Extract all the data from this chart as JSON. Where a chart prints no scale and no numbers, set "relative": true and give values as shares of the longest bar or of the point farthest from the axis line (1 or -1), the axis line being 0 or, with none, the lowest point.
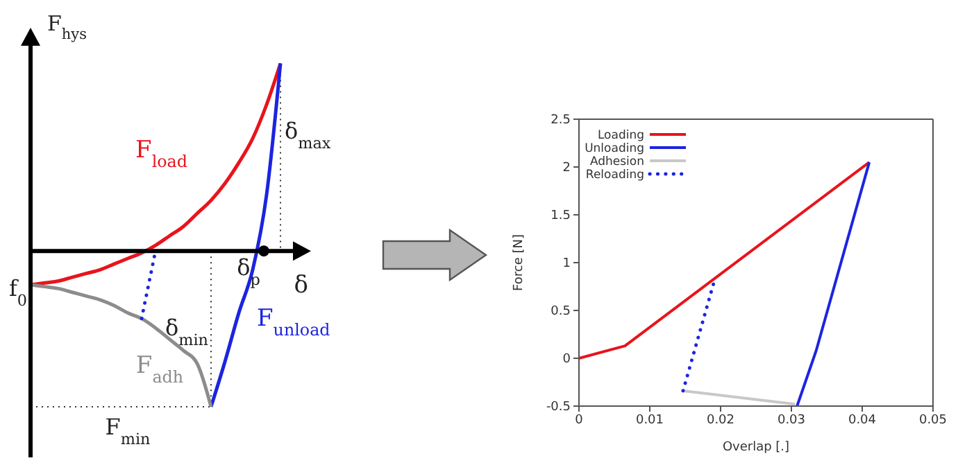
{
  "chart_data": [
    {
      "type": "line",
      "relative": true,
      "xlabel": "δ",
      "ylabel": "F$_{hys}$",
      "legend": false,
      "categories": [
        null,
        null,
        null,
        null,
        null,
        null,
        null,
        null,
        null,
        null,
        null,
        null,
        null,
        null,
        null,
        null,
        null,
        null,
        null
      ],
      "series": [
        {
          "name": "F$_{load}$",
          "color": "#e8141c",
          "values": [
            -0.18,
            -0.17,
            -0.16,
            -0.14,
            -0.12,
            -0.1,
            -0.07,
            -0.04,
            -0.01,
            0.03,
            0.08,
            0.13,
            0.2,
            0.27,
            0.36,
            0.47,
            0.6,
            0.78,
            1
          ]
        },
        {
          "name": "F$_{unload}$",
          "color": "#1c24e0",
          "values": [
            null,
            null,
            null,
            null,
            null,
            null,
            null,
            null,
            null,
            null,
            null,
            null,
            null,
            -0.83,
            -0.59,
            -0.33,
            -0.1,
            0.3,
            1
          ]
        },
        {
          "name": "F$_{adh}$",
          "color": "#8c8c8c",
          "values": [
            -0.18,
            -0.19,
            -0.2,
            -0.22,
            -0.24,
            -0.26,
            -0.29,
            -0.33,
            -0.36,
            -0.41,
            -0.47,
            -0.53,
            -0.6,
            -0.83,
            null,
            null,
            null,
            null,
            null
          ]
        },
        {
          "color": "#1c24e0",
          "line_style": "dotted",
          "values": [
            null,
            null,
            null,
            null,
            null,
            null,
            null,
            null,
            -0.36,
            0,
            null,
            null,
            null,
            null,
            null,
            null,
            null,
            null,
            null
          ]
        }
      ],
      "ref_lines": [
        {
          "axis": "y",
          "value": -0.83,
          "label": "F$_{min}$",
          "color": "#333333",
          "line_style": "dotted"
        },
        {
          "axis": "x",
          "label": "δ$_{min}$",
          "color": "#333333",
          "line_style": "dotted"
        },
        {
          "axis": "x",
          "label": "δ$_{max}$",
          "color": "#333333",
          "line_style": "dotted"
        }
      ],
      "annotations": [
        "f$_{0}$",
        "δ$_{p}$"
      ]
    },
    {
      "type": "line",
      "xlabel": "Overlap [.]",
      "ylabel": "Force [N]",
      "xlim": [
        0,
        0.05
      ],
      "xticks": [
        0,
        0.01,
        0.02,
        0.03,
        0.04,
        0.05
      ],
      "ylim": [
        -0.5,
        2.5
      ],
      "yticks": [
        -0.5,
        0,
        0.5,
        1,
        1.5,
        2,
        2.5
      ],
      "legend": "top left",
      "grid": false,
      "series": [
        {
          "name": "Loading",
          "color": "#e8141c",
          "x": [
            0,
            0.0065,
            0.041
          ],
          "values": [
            0,
            0.13,
            2.05
          ]
        },
        {
          "name": "Unloading",
          "color": "#1c24e0",
          "x": [
            0.0308,
            0.0335,
            0.041
          ],
          "values": [
            -0.5,
            0.08,
            2.05
          ]
        },
        {
          "name": "Adhesion",
          "color": "#c8c8c8",
          "x": [
            0.0147,
            0.0305
          ],
          "values": [
            -0.34,
            -0.48
          ]
        },
        {
          "name": "Reloading",
          "color": "#1c24e0",
          "line_style": "dotted",
          "x": [
            0.0147,
            0.019
          ],
          "values": [
            -0.34,
            0.78
          ]
        }
      ]
    }
  ]
}
